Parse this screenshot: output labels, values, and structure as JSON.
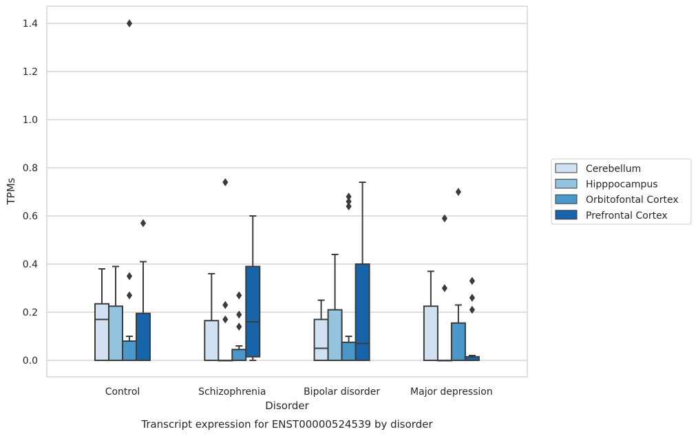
{
  "chart_data": {
    "type": "boxplot",
    "title": "Transcript expression for ENST00000524539 by disorder",
    "xlabel": "Disorder",
    "ylabel": "TPMs",
    "ylim": [
      -0.07,
      1.47
    ],
    "yticks": [
      0.0,
      0.2,
      0.4,
      0.6,
      0.8,
      1.0,
      1.2,
      1.4
    ],
    "ytick_labels": [
      "0.0",
      "0.2",
      "0.4",
      "0.6",
      "0.8",
      "1.0",
      "1.2",
      "1.4"
    ],
    "grid": true,
    "legend_placement": "center-right outside",
    "categories": [
      "Control",
      "Schizophrenia",
      "Bipolar disorder",
      "Major depression"
    ],
    "series": [
      {
        "name": "Cerebellum",
        "color": "#d0e1f2",
        "boxes": [
          {
            "q1": 0.0,
            "median": 0.17,
            "q3": 0.235,
            "whisker_low": 0.0,
            "whisker_high": 0.38,
            "outliers": []
          },
          {
            "q1": 0.0,
            "median": 0.0,
            "q3": 0.165,
            "whisker_low": 0.0,
            "whisker_high": 0.36,
            "outliers": []
          },
          {
            "q1": 0.0,
            "median": 0.05,
            "q3": 0.17,
            "whisker_low": 0.0,
            "whisker_high": 0.25,
            "outliers": []
          },
          {
            "q1": 0.0,
            "median": 0.0,
            "q3": 0.225,
            "whisker_low": 0.0,
            "whisker_high": 0.37,
            "outliers": []
          }
        ]
      },
      {
        "name": "Hipppocampus",
        "color": "#94c4df",
        "boxes": [
          {
            "q1": 0.0,
            "median": 0.0,
            "q3": 0.225,
            "whisker_low": 0.0,
            "whisker_high": 0.39,
            "outliers": []
          },
          {
            "q1": 0.0,
            "median": 0.0,
            "q3": 0.0,
            "whisker_low": 0.0,
            "whisker_high": 0.0,
            "outliers": [
              0.74,
              0.23,
              0.17
            ]
          },
          {
            "q1": 0.0,
            "median": 0.0,
            "q3": 0.21,
            "whisker_low": 0.0,
            "whisker_high": 0.44,
            "outliers": []
          },
          {
            "q1": 0.0,
            "median": 0.0,
            "q3": 0.0,
            "whisker_low": 0.0,
            "whisker_high": 0.0,
            "outliers": [
              0.59,
              0.3
            ]
          }
        ]
      },
      {
        "name": "Orbitofontal Cortex",
        "color": "#4a98c9",
        "boxes": [
          {
            "q1": 0.0,
            "median": 0.0,
            "q3": 0.08,
            "whisker_low": 0.0,
            "whisker_high": 0.1,
            "outliers": [
              1.4,
              0.35,
              0.27
            ]
          },
          {
            "q1": 0.0,
            "median": 0.0,
            "q3": 0.045,
            "whisker_low": 0.0,
            "whisker_high": 0.06,
            "outliers": [
              0.27,
              0.19,
              0.14
            ]
          },
          {
            "q1": 0.0,
            "median": 0.0,
            "q3": 0.075,
            "whisker_low": 0.0,
            "whisker_high": 0.1,
            "outliers": [
              0.68,
              0.66,
              0.64
            ]
          },
          {
            "q1": 0.0,
            "median": 0.0,
            "q3": 0.155,
            "whisker_low": 0.0,
            "whisker_high": 0.23,
            "outliers": [
              0.7
            ]
          }
        ]
      },
      {
        "name": "Prefrontal Cortex",
        "color": "#1764ab",
        "boxes": [
          {
            "q1": 0.0,
            "median": 0.0,
            "q3": 0.195,
            "whisker_low": 0.0,
            "whisker_high": 0.41,
            "outliers": [
              0.57
            ]
          },
          {
            "q1": 0.015,
            "median": 0.16,
            "q3": 0.39,
            "whisker_low": 0.0,
            "whisker_high": 0.6,
            "outliers": []
          },
          {
            "q1": 0.0,
            "median": 0.07,
            "q3": 0.4,
            "whisker_low": 0.0,
            "whisker_high": 0.74,
            "outliers": []
          },
          {
            "q1": 0.0,
            "median": 0.0,
            "q3": 0.015,
            "whisker_low": 0.0,
            "whisker_high": 0.02,
            "outliers": [
              0.33,
              0.26,
              0.21
            ]
          }
        ]
      }
    ]
  }
}
